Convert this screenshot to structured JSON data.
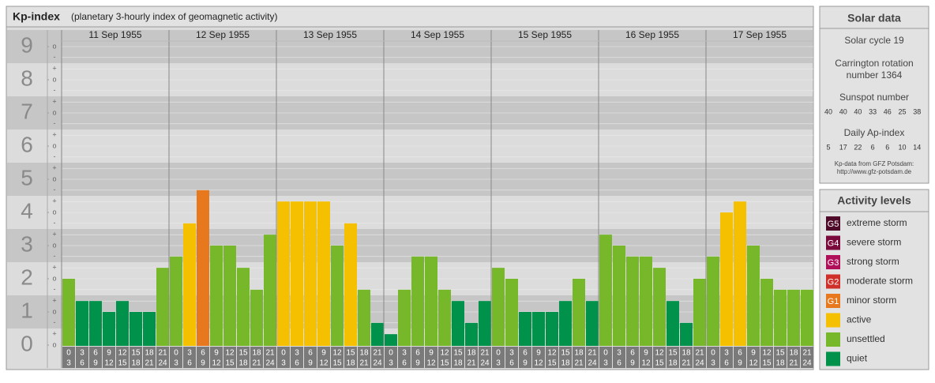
{
  "chart_data": {
    "type": "bar",
    "title": "Kp-index",
    "subtitle": "(planetary 3-hourly index of geomagnetic activity)",
    "ylim": [
      0,
      9.5
    ],
    "yticks": [
      0,
      1,
      2,
      3,
      4,
      5,
      6,
      7,
      8,
      9
    ],
    "minor_ticks": [
      {
        "value": 0,
        "label": "o"
      },
      {
        "value": 0.33,
        "label": "+"
      },
      {
        "value": 0.67,
        "label": "-"
      },
      {
        "value": 1,
        "label": "o"
      },
      {
        "value": 1.33,
        "label": "+"
      },
      {
        "value": 1.67,
        "label": "-"
      },
      {
        "value": 2,
        "label": "o"
      },
      {
        "value": 2.33,
        "label": "+"
      },
      {
        "value": 2.67,
        "label": "-"
      },
      {
        "value": 3,
        "label": "o"
      },
      {
        "value": 3.33,
        "label": "+"
      },
      {
        "value": 3.67,
        "label": "-"
      },
      {
        "value": 4,
        "label": "o"
      },
      {
        "value": 4.33,
        "label": "+"
      },
      {
        "value": 4.67,
        "label": "-"
      },
      {
        "value": 5,
        "label": "o"
      },
      {
        "value": 5.33,
        "label": "+"
      },
      {
        "value": 5.67,
        "label": "-"
      },
      {
        "value": 6,
        "label": "o"
      },
      {
        "value": 6.33,
        "label": "+"
      },
      {
        "value": 6.67,
        "label": "-"
      },
      {
        "value": 7,
        "label": "o"
      },
      {
        "value": 7.33,
        "label": "+"
      },
      {
        "value": 7.67,
        "label": "-"
      },
      {
        "value": 8,
        "label": "o"
      },
      {
        "value": 8.33,
        "label": "+"
      },
      {
        "value": 8.67,
        "label": "-"
      },
      {
        "value": 9,
        "label": "o"
      }
    ],
    "hour_ticks": [
      {
        "start": 0,
        "end": 3
      },
      {
        "start": 3,
        "end": 6
      },
      {
        "start": 6,
        "end": 9
      },
      {
        "start": 9,
        "end": 12
      },
      {
        "start": 12,
        "end": 15
      },
      {
        "start": 15,
        "end": 18
      },
      {
        "start": 18,
        "end": 21
      },
      {
        "start": 21,
        "end": 24
      }
    ],
    "days": [
      {
        "date": "11 Sep 1955",
        "values": [
          2,
          1.33,
          1.33,
          1,
          1.33,
          1,
          1,
          2.33
        ],
        "colors": [
          "#76b82a",
          "#00914a",
          "#00914a",
          "#00914a",
          "#00914a",
          "#00914a",
          "#00914a",
          "#76b82a"
        ]
      },
      {
        "date": "12 Sep 1955",
        "values": [
          2.67,
          3.67,
          4.67,
          3,
          3,
          2.33,
          1.67,
          3.33
        ],
        "colors": [
          "#76b82a",
          "#f5c000",
          "#e8781e",
          "#76b82a",
          "#76b82a",
          "#76b82a",
          "#76b82a",
          "#76b82a"
        ]
      },
      {
        "date": "13 Sep 1955",
        "values": [
          4.33,
          4.33,
          4.33,
          4.33,
          3,
          3.67,
          1.67,
          0.67
        ],
        "colors": [
          "#f5c000",
          "#f5c000",
          "#f5c000",
          "#f5c000",
          "#76b82a",
          "#f5c000",
          "#76b82a",
          "#00914a"
        ]
      },
      {
        "date": "14 Sep 1955",
        "values": [
          0.33,
          1.67,
          2.67,
          2.67,
          1.67,
          1.33,
          0.67,
          1.33
        ],
        "colors": [
          "#00914a",
          "#76b82a",
          "#76b82a",
          "#76b82a",
          "#76b82a",
          "#00914a",
          "#00914a",
          "#00914a"
        ]
      },
      {
        "date": "15 Sep 1955",
        "values": [
          2.33,
          2,
          1,
          1,
          1,
          1.33,
          2,
          1.33
        ],
        "colors": [
          "#76b82a",
          "#76b82a",
          "#00914a",
          "#00914a",
          "#00914a",
          "#00914a",
          "#76b82a",
          "#00914a"
        ]
      },
      {
        "date": "16 Sep 1955",
        "values": [
          3.33,
          3,
          2.67,
          2.67,
          2.33,
          1.33,
          0.67,
          2
        ],
        "colors": [
          "#76b82a",
          "#76b82a",
          "#76b82a",
          "#76b82a",
          "#76b82a",
          "#00914a",
          "#00914a",
          "#76b82a"
        ]
      },
      {
        "date": "17 Sep 1955",
        "values": [
          2.67,
          4,
          4.33,
          3,
          2,
          1.67,
          1.67,
          1.67
        ],
        "colors": [
          "#76b82a",
          "#f5c000",
          "#f5c000",
          "#76b82a",
          "#76b82a",
          "#76b82a",
          "#76b82a",
          "#76b82a"
        ]
      }
    ]
  },
  "solar": {
    "title": "Solar data",
    "cycle": "Solar cycle 19",
    "carrington": [
      "Carrington rotation",
      "number 1364"
    ],
    "sunspot_label": "Sunspot number",
    "sunspot": [
      40,
      40,
      40,
      33,
      46,
      25,
      38
    ],
    "ap_label": "Daily Ap-index",
    "ap": [
      5,
      17,
      22,
      6,
      6,
      10,
      14
    ],
    "source": [
      "Kp-data from GFZ Potsdam:",
      "http://www.gfz-potsdam.de"
    ]
  },
  "levels": {
    "title": "Activity levels",
    "items": [
      {
        "badge": "G5",
        "name": "extreme storm",
        "color": "#4e0a28"
      },
      {
        "badge": "G4",
        "name": "severe storm",
        "color": "#7a0a3c"
      },
      {
        "badge": "G3",
        "name": "strong storm",
        "color": "#b0105a"
      },
      {
        "badge": "G2",
        "name": "moderate storm",
        "color": "#d0302a"
      },
      {
        "badge": "G1",
        "name": "minor storm",
        "color": "#e8781e"
      },
      {
        "name": "active",
        "color": "#f5c000"
      },
      {
        "name": "unsettled",
        "color": "#76b82a"
      },
      {
        "name": "quiet",
        "color": "#00914a"
      }
    ]
  }
}
